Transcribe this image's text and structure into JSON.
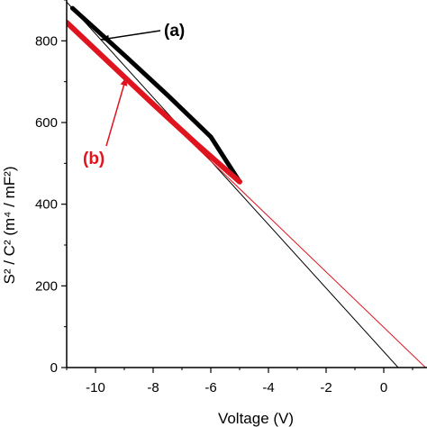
{
  "chart_data": {
    "type": "line",
    "title": "",
    "xlabel": "Voltage (V)",
    "ylabel": "S² / C² (m⁴ / mF²)",
    "xlim": [
      -11,
      1.5
    ],
    "ylim": [
      0,
      900
    ],
    "x_ticks": [
      -10,
      -8,
      -6,
      -4,
      -2,
      0
    ],
    "y_ticks": [
      0,
      200,
      400,
      600,
      800
    ],
    "x_tick_labels": [
      "-10",
      "-8",
      "-6",
      "-4",
      "-2",
      "0"
    ],
    "y_tick_labels": [
      "0",
      "200",
      "400",
      "600",
      "800"
    ],
    "grid": false,
    "series": [
      {
        "color": "#000000",
        "measured_points": [
          [
            -10.8,
            880
          ],
          [
            -9.0,
            765
          ],
          [
            -7.5,
            667
          ],
          [
            -6.0,
            565
          ],
          [
            -5.0,
            455
          ]
        ],
        "fit_line": [
          [
            -11,
            895
          ],
          [
            0.5,
            0
          ]
        ]
      },
      {
        "color": "#e0141e",
        "measured_points": [
          [
            -11,
            845
          ],
          [
            -9.5,
            745
          ],
          [
            -8.0,
            645
          ],
          [
            -6.5,
            548
          ],
          [
            -5.0,
            455
          ]
        ],
        "fit_line": [
          [
            -11,
            845
          ],
          [
            1.45,
            0
          ]
        ]
      }
    ],
    "annotations": [
      {
        "text": "(a)",
        "color": "#000000"
      },
      {
        "text": "(b)",
        "color": "#e0141e"
      }
    ]
  }
}
